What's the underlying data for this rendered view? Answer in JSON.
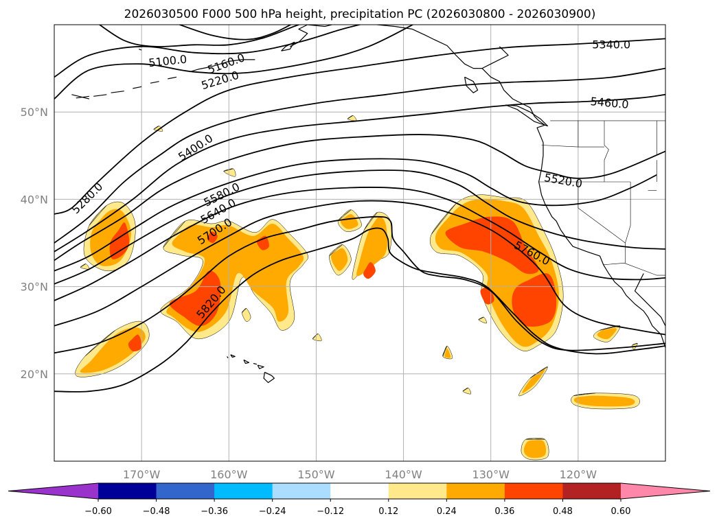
{
  "title": "2026030500 F000 500 hPa height, precipitation PC (2026030800 - 2026030900)",
  "map": {
    "lon_range": [
      -180,
      -110
    ],
    "lat_range": [
      10,
      60
    ],
    "lon_ticks": [
      {
        "value": -170,
        "label": "170°W"
      },
      {
        "value": -160,
        "label": "160°W"
      },
      {
        "value": -150,
        "label": "150°W"
      },
      {
        "value": -140,
        "label": "140°W"
      },
      {
        "value": -130,
        "label": "130°W"
      },
      {
        "value": -120,
        "label": "120°W"
      }
    ],
    "lat_ticks": [
      {
        "value": 20,
        "label": "20°N"
      },
      {
        "value": 30,
        "label": "30°N"
      },
      {
        "value": 40,
        "label": "40°N"
      },
      {
        "value": 50,
        "label": "50°N"
      }
    ],
    "gridlines": true,
    "grid_color": "#b0b0b0",
    "tick_label_color": "#808080"
  },
  "height_contours": {
    "levels": [
      5100,
      5160,
      5220,
      5280,
      5340,
      5400,
      5460,
      5520,
      5580,
      5640,
      5700,
      5760,
      5820
    ],
    "labels": [
      {
        "text": "5100.0",
        "lon": -167,
        "lat": 55.8,
        "angle": -6
      },
      {
        "text": "5160.0",
        "lon": -160.3,
        "lat": 55.5,
        "angle": -20
      },
      {
        "text": "5220.0",
        "lon": -161,
        "lat": 53.6,
        "angle": -17
      },
      {
        "text": "5340.0",
        "lon": -116.2,
        "lat": 57.7,
        "angle": 0
      },
      {
        "text": "5460.0",
        "lon": -116.4,
        "lat": 51.0,
        "angle": 5
      },
      {
        "text": "5400.0",
        "lon": -163.8,
        "lat": 45.9,
        "angle": -33
      },
      {
        "text": "5280.0",
        "lon": -176.2,
        "lat": 40.1,
        "angle": -45
      },
      {
        "text": "5580.0",
        "lon": -160.8,
        "lat": 40.5,
        "angle": -27
      },
      {
        "text": "5520.0",
        "lon": -121.7,
        "lat": 42.1,
        "angle": 10
      },
      {
        "text": "5640.0",
        "lon": -161.2,
        "lat": 38.6,
        "angle": -30
      },
      {
        "text": "5700.0",
        "lon": -161.6,
        "lat": 36.3,
        "angle": -33
      },
      {
        "text": "5760.0",
        "lon": -125.3,
        "lat": 33.8,
        "angle": 28
      },
      {
        "text": "5820.0",
        "lon": -162.0,
        "lat": 28.2,
        "angle": -50
      }
    ]
  },
  "colorbar": {
    "colors": [
      "#9933cc",
      "#000099",
      "#3366cc",
      "#00bbff",
      "#aaddff",
      "#ffffff",
      "#ffe98a",
      "#ffaa00",
      "#ff4400",
      "#b22222",
      "#ff88aa"
    ],
    "ticks": [
      "−0.60",
      "−0.48",
      "−0.36",
      "−0.24",
      "−0.12",
      "0.12",
      "0.24",
      "0.36",
      "0.48",
      "0.60"
    ]
  },
  "precip_colors": {
    "low": "#ffe98a",
    "mid": "#ffaa00",
    "high": "#ff4400"
  }
}
